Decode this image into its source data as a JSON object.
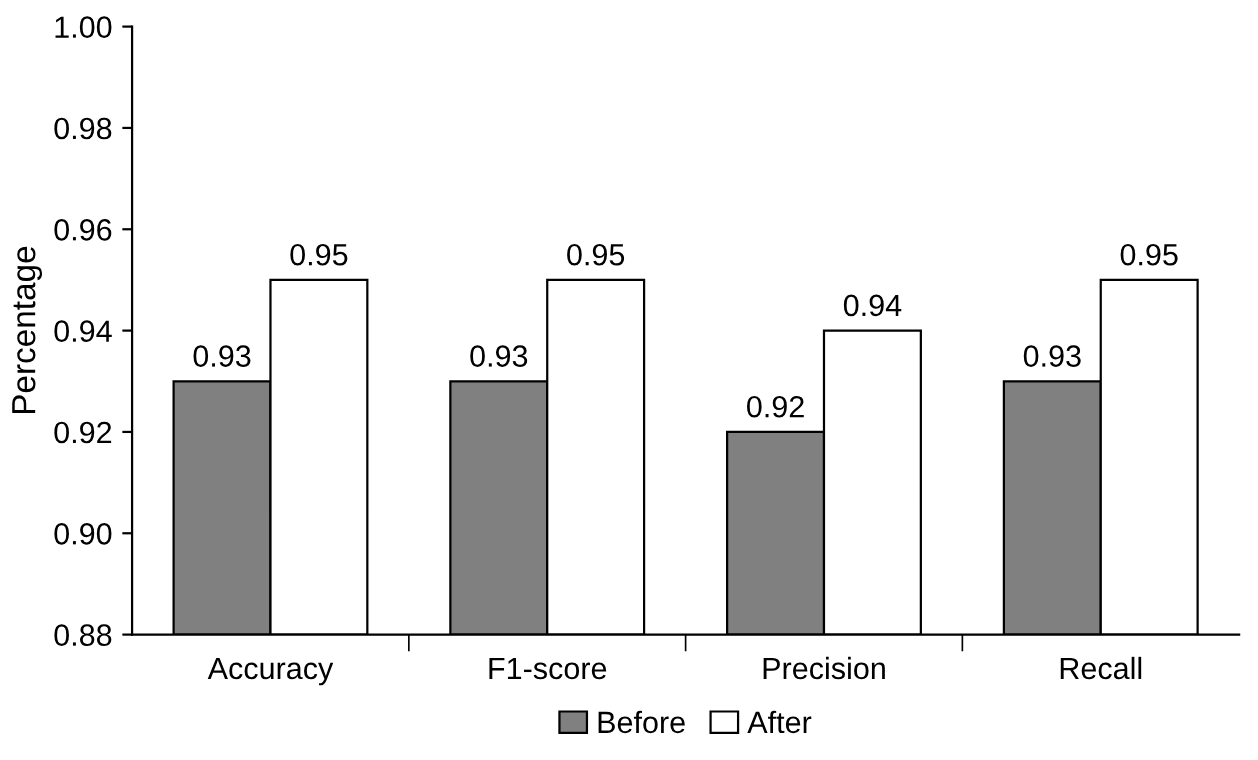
{
  "chart_data": {
    "type": "bar",
    "ylabel": "Percentage",
    "categories": [
      "Accuracy",
      "F1-score",
      "Precision",
      "Recall"
    ],
    "series": [
      {
        "name": "Before",
        "color": "#808080",
        "values": [
          0.93,
          0.93,
          0.92,
          0.93
        ]
      },
      {
        "name": "After",
        "color": "#ffffff",
        "values": [
          0.95,
          0.95,
          0.94,
          0.95
        ]
      }
    ],
    "ylim": [
      0.88,
      1.0
    ],
    "yticks": [
      0.88,
      {
        "value": 0.9,
        "label": "0.90"
      },
      0.92,
      0.94,
      0.96,
      0.98,
      {
        "value": 1.0,
        "label": "1.00"
      }
    ],
    "data_labels": true,
    "grid": false,
    "legend": "bottom"
  }
}
